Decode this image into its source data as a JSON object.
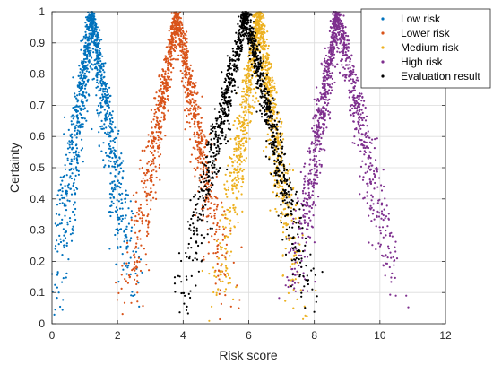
{
  "chart_data": {
    "type": "scatter",
    "title": "",
    "xlabel": "Risk score",
    "ylabel": "Certainty",
    "xlim": [
      0,
      12
    ],
    "ylim": [
      0,
      1
    ],
    "xticks": [
      "0",
      "2",
      "4",
      "6",
      "8",
      "10",
      "12"
    ],
    "yticks": [
      "0",
      "0.1",
      "0.2",
      "0.3",
      "0.4",
      "0.5",
      "0.6",
      "0.7",
      "0.8",
      "0.9",
      "1"
    ],
    "grid": true,
    "legend_position": "top-right",
    "series": [
      {
        "name": "Low risk",
        "color": "#0072BD",
        "peak_x": 1.2,
        "base_min": 0.0,
        "base_max": 2.6
      },
      {
        "name": "Lower risk",
        "color": "#D95319",
        "peak_x": 3.8,
        "base_min": 2.2,
        "base_max": 5.5
      },
      {
        "name": "Medium risk",
        "color": "#EDB120",
        "peak_x": 6.3,
        "base_min": 5.0,
        "base_max": 7.6
      },
      {
        "name": "High risk",
        "color": "#7E2F8E",
        "peak_x": 8.7,
        "base_min": 7.2,
        "base_max": 10.7
      },
      {
        "name": "Evaluation result",
        "color": "#000000",
        "peak_x": 5.9,
        "base_min": 3.8,
        "base_max": 8.0
      }
    ]
  }
}
